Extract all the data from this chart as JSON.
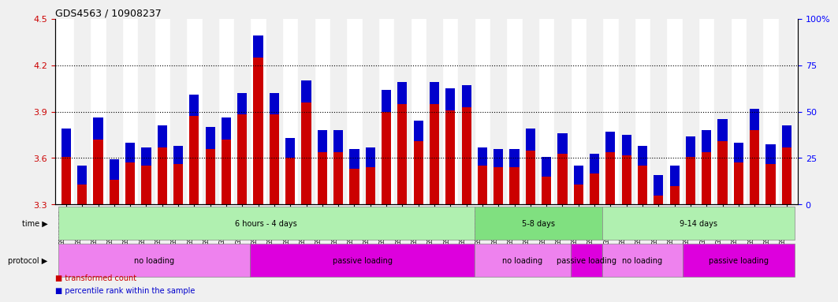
{
  "title": "GDS4563 / 10908237",
  "samples": [
    "GSM930471",
    "GSM930472",
    "GSM930473",
    "GSM930474",
    "GSM930475",
    "GSM930476",
    "GSM930477",
    "GSM930478",
    "GSM930479",
    "GSM930480",
    "GSM930481",
    "GSM930482",
    "GSM930483",
    "GSM930494",
    "GSM930495",
    "GSM930496",
    "GSM930497",
    "GSM930498",
    "GSM930499",
    "GSM930500",
    "GSM930501",
    "GSM930502",
    "GSM930503",
    "GSM930504",
    "GSM930505",
    "GSM930506",
    "GSM930484",
    "GSM930485",
    "GSM930486",
    "GSM930487",
    "GSM930507",
    "GSM930508",
    "GSM930509",
    "GSM930510",
    "GSM930488",
    "GSM930489",
    "GSM930490",
    "GSM930491",
    "GSM930492",
    "GSM930493",
    "GSM930511",
    "GSM930512",
    "GSM930513",
    "GSM930514",
    "GSM930515",
    "GSM930516"
  ],
  "red_values": [
    3.61,
    3.43,
    3.72,
    3.46,
    3.57,
    3.55,
    3.67,
    3.56,
    3.87,
    3.66,
    3.72,
    3.88,
    4.25,
    3.88,
    3.6,
    3.96,
    3.64,
    3.64,
    3.53,
    3.54,
    3.9,
    3.95,
    3.71,
    3.95,
    3.91,
    3.93,
    3.55,
    3.54,
    3.54,
    3.65,
    3.48,
    3.63,
    3.43,
    3.5,
    3.64,
    3.62,
    3.55,
    3.36,
    3.42,
    3.61,
    3.64,
    3.71,
    3.57,
    3.78,
    3.56,
    3.67
  ],
  "blue_values": [
    0.18,
    0.12,
    0.14,
    0.13,
    0.13,
    0.12,
    0.14,
    0.12,
    0.14,
    0.14,
    0.14,
    0.14,
    0.14,
    0.14,
    0.13,
    0.14,
    0.14,
    0.14,
    0.13,
    0.13,
    0.14,
    0.14,
    0.13,
    0.14,
    0.14,
    0.14,
    0.12,
    0.12,
    0.12,
    0.14,
    0.13,
    0.13,
    0.12,
    0.13,
    0.13,
    0.13,
    0.13,
    0.13,
    0.13,
    0.13,
    0.14,
    0.14,
    0.13,
    0.14,
    0.13,
    0.14
  ],
  "ymin": 3.3,
  "ymax": 4.5,
  "yticks": [
    3.3,
    3.6,
    3.9,
    4.2,
    4.5
  ],
  "ytick_labels": [
    "3.3",
    "3.6",
    "3.9",
    "4.2",
    "4.5"
  ],
  "right_yticks": [
    0,
    25,
    50,
    75,
    100
  ],
  "gridlines": [
    3.6,
    3.9,
    4.2
  ],
  "bar_color_red": "#cc0000",
  "bar_color_blue": "#0000cc",
  "bg_color": "#e8e8e8",
  "plot_bg": "#ffffff",
  "time_row": {
    "label": "time",
    "groups": [
      {
        "text": "6 hours - 4 days",
        "start": 0,
        "end": 25,
        "color": "#b0f0b0"
      },
      {
        "text": "5-8 days",
        "start": 26,
        "end": 33,
        "color": "#80e080"
      },
      {
        "text": "9-14 days",
        "start": 34,
        "end": 45,
        "color": "#b0f0b0"
      }
    ]
  },
  "protocol_row": {
    "label": "protocol",
    "groups": [
      {
        "text": "no loading",
        "start": 0,
        "end": 11,
        "color": "#ee82ee"
      },
      {
        "text": "passive loading",
        "start": 12,
        "end": 25,
        "color": "#dd00dd"
      },
      {
        "text": "no loading",
        "start": 26,
        "end": 31,
        "color": "#ee82ee"
      },
      {
        "text": "passive loading",
        "start": 32,
        "end": 33,
        "color": "#dd00dd"
      },
      {
        "text": "no loading",
        "start": 34,
        "end": 38,
        "color": "#ee82ee"
      },
      {
        "text": "passive loading",
        "start": 39,
        "end": 45,
        "color": "#dd00dd"
      }
    ]
  }
}
